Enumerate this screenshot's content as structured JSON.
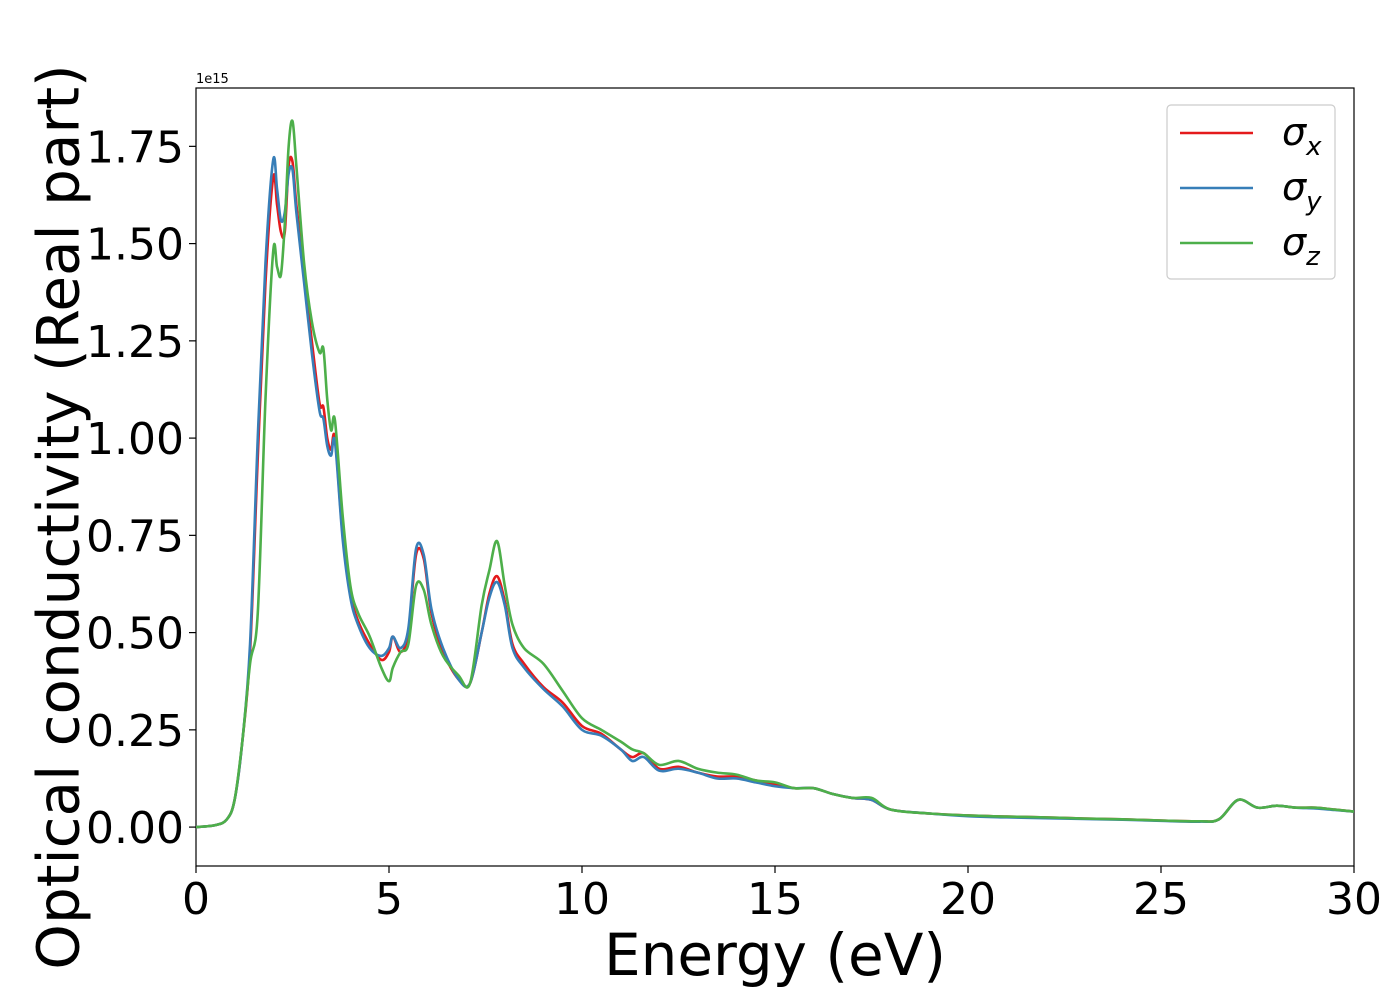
{
  "chart_data": {
    "type": "line",
    "title": "",
    "xlabel": "Energy (eV)",
    "ylabel": "Optical conductivity (Real part)",
    "y_offset_text": "1e15",
    "xlim": [
      0,
      30
    ],
    "ylim": [
      -0.1,
      1.9
    ],
    "y_scale_factor": 1000000000000000.0,
    "xticks": [
      0,
      5,
      10,
      15,
      20,
      25,
      30
    ],
    "xtick_labels": [
      "0",
      "5",
      "10",
      "15",
      "20",
      "25",
      "30"
    ],
    "yticks": [
      0.0,
      0.25,
      0.5,
      0.75,
      1.0,
      1.25,
      1.5,
      1.75
    ],
    "ytick_labels": [
      "0.00",
      "0.25",
      "0.50",
      "0.75",
      "1.00",
      "1.25",
      "1.50",
      "1.75"
    ],
    "grid": false,
    "legend_position": "top-right",
    "series": [
      {
        "name": "σx",
        "legend_base": "σ",
        "legend_sub": "x",
        "color": "#e41a1c",
        "x": [
          0,
          0.5,
          0.8,
          1.0,
          1.2,
          1.4,
          1.6,
          1.8,
          2.0,
          2.1,
          2.2,
          2.3,
          2.4,
          2.5,
          2.6,
          2.8,
          3.0,
          3.2,
          3.3,
          3.4,
          3.5,
          3.6,
          3.8,
          4.0,
          4.2,
          4.5,
          4.8,
          5.0,
          5.1,
          5.3,
          5.5,
          5.7,
          5.9,
          6.1,
          6.4,
          6.8,
          7.1,
          7.4,
          7.6,
          7.8,
          8.0,
          8.2,
          8.5,
          9.0,
          9.5,
          10.0,
          10.5,
          11.0,
          11.3,
          11.6,
          12.0,
          12.5,
          13.0,
          13.5,
          14.0,
          14.5,
          15.0,
          15.5,
          16.0,
          16.5,
          17.0,
          17.5,
          18.0,
          19.0,
          20.0,
          21.0,
          22.0,
          23.0,
          24.0,
          25.0,
          26.0,
          26.5,
          27.0,
          27.5,
          28.0,
          28.5,
          29.0,
          29.5,
          30.0
        ],
        "y": [
          0.0,
          0.005,
          0.02,
          0.07,
          0.22,
          0.45,
          0.95,
          1.4,
          1.67,
          1.6,
          1.53,
          1.53,
          1.7,
          1.71,
          1.6,
          1.42,
          1.25,
          1.09,
          1.08,
          1.0,
          0.97,
          1.0,
          0.75,
          0.6,
          0.53,
          0.47,
          0.43,
          0.45,
          0.49,
          0.45,
          0.5,
          0.7,
          0.69,
          0.55,
          0.45,
          0.38,
          0.37,
          0.5,
          0.6,
          0.645,
          0.58,
          0.47,
          0.42,
          0.36,
          0.32,
          0.26,
          0.24,
          0.2,
          0.18,
          0.19,
          0.15,
          0.155,
          0.14,
          0.13,
          0.13,
          0.12,
          0.11,
          0.1,
          0.1,
          0.085,
          0.075,
          0.07,
          0.045,
          0.035,
          0.03,
          0.027,
          0.025,
          0.022,
          0.02,
          0.017,
          0.015,
          0.02,
          0.07,
          0.05,
          0.055,
          0.05,
          0.05,
          0.045,
          0.04
        ]
      },
      {
        "name": "σy",
        "legend_base": "σ",
        "legend_sub": "y",
        "color": "#377eb8",
        "x": [
          0,
          0.5,
          0.8,
          1.0,
          1.2,
          1.4,
          1.6,
          1.8,
          2.0,
          2.1,
          2.2,
          2.3,
          2.4,
          2.5,
          2.6,
          2.8,
          3.0,
          3.2,
          3.3,
          3.4,
          3.5,
          3.6,
          3.8,
          4.0,
          4.2,
          4.5,
          4.8,
          5.0,
          5.1,
          5.3,
          5.5,
          5.7,
          5.9,
          6.1,
          6.4,
          6.8,
          7.1,
          7.4,
          7.6,
          7.8,
          8.0,
          8.2,
          8.5,
          9.0,
          9.5,
          10.0,
          10.5,
          11.0,
          11.3,
          11.6,
          12.0,
          12.5,
          13.0,
          13.5,
          14.0,
          14.5,
          15.0,
          15.5,
          16.0,
          16.5,
          17.0,
          17.5,
          18.0,
          19.0,
          20.0,
          21.0,
          22.0,
          23.0,
          24.0,
          25.0,
          26.0,
          26.5,
          27.0,
          27.5,
          28.0,
          28.5,
          29.0,
          29.5,
          30.0
        ],
        "y": [
          0.0,
          0.005,
          0.02,
          0.07,
          0.22,
          0.47,
          1.0,
          1.45,
          1.715,
          1.64,
          1.56,
          1.58,
          1.68,
          1.69,
          1.58,
          1.4,
          1.22,
          1.07,
          1.05,
          0.98,
          0.955,
          0.99,
          0.74,
          0.59,
          0.52,
          0.46,
          0.44,
          0.46,
          0.49,
          0.46,
          0.51,
          0.715,
          0.7,
          0.56,
          0.46,
          0.38,
          0.37,
          0.5,
          0.59,
          0.63,
          0.57,
          0.46,
          0.41,
          0.355,
          0.31,
          0.25,
          0.235,
          0.2,
          0.17,
          0.18,
          0.145,
          0.15,
          0.14,
          0.125,
          0.125,
          0.115,
          0.105,
          0.1,
          0.1,
          0.085,
          0.075,
          0.07,
          0.045,
          0.035,
          0.028,
          0.025,
          0.023,
          0.021,
          0.019,
          0.016,
          0.014,
          0.02,
          0.07,
          0.05,
          0.055,
          0.05,
          0.048,
          0.044,
          0.04
        ]
      },
      {
        "name": "σz",
        "legend_base": "σ",
        "legend_sub": "z",
        "color": "#4daf4a",
        "x": [
          0,
          0.5,
          0.8,
          1.0,
          1.2,
          1.4,
          1.6,
          1.8,
          2.0,
          2.1,
          2.2,
          2.3,
          2.4,
          2.5,
          2.6,
          2.8,
          3.0,
          3.2,
          3.3,
          3.4,
          3.5,
          3.6,
          3.8,
          4.0,
          4.2,
          4.5,
          4.8,
          5.0,
          5.1,
          5.3,
          5.5,
          5.7,
          5.9,
          6.1,
          6.4,
          6.8,
          7.1,
          7.4,
          7.6,
          7.8,
          8.0,
          8.2,
          8.5,
          9.0,
          9.5,
          10.0,
          10.5,
          11.0,
          11.3,
          11.6,
          12.0,
          12.5,
          13.0,
          13.5,
          14.0,
          14.5,
          15.0,
          15.5,
          16.0,
          16.5,
          17.0,
          17.5,
          18.0,
          19.0,
          20.0,
          21.0,
          22.0,
          23.0,
          24.0,
          25.0,
          26.0,
          26.5,
          27.0,
          27.5,
          28.0,
          28.5,
          29.0,
          29.5,
          30.0
        ],
        "y": [
          0.0,
          0.005,
          0.02,
          0.07,
          0.22,
          0.42,
          0.55,
          1.1,
          1.48,
          1.44,
          1.42,
          1.55,
          1.75,
          1.815,
          1.7,
          1.45,
          1.3,
          1.22,
          1.23,
          1.1,
          1.02,
          1.045,
          0.8,
          0.62,
          0.55,
          0.49,
          0.41,
          0.375,
          0.41,
          0.45,
          0.47,
          0.62,
          0.61,
          0.52,
          0.44,
          0.39,
          0.37,
          0.57,
          0.66,
          0.735,
          0.62,
          0.52,
          0.46,
          0.42,
          0.35,
          0.28,
          0.25,
          0.22,
          0.2,
          0.19,
          0.16,
          0.17,
          0.15,
          0.14,
          0.135,
          0.12,
          0.115,
          0.1,
          0.1,
          0.085,
          0.075,
          0.075,
          0.045,
          0.035,
          0.03,
          0.027,
          0.025,
          0.022,
          0.02,
          0.017,
          0.015,
          0.02,
          0.07,
          0.05,
          0.055,
          0.05,
          0.05,
          0.045,
          0.04
        ]
      }
    ]
  }
}
